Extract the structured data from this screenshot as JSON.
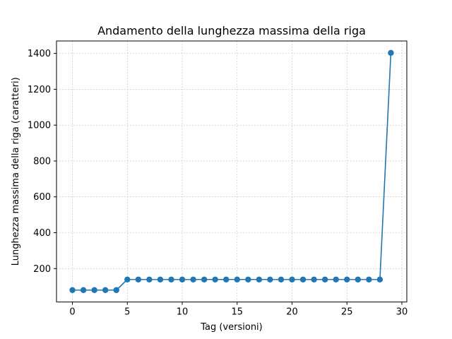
{
  "chart_data": {
    "type": "line",
    "title": "Andamento della lunghezza massima della riga",
    "xlabel": "Tag (versioni)",
    "ylabel": "Lunghezza massima della riga (caratteri)",
    "xlim": [
      -1.45,
      30.45
    ],
    "ylim": [
      13.6,
      1469.4
    ],
    "xticks": [
      0,
      5,
      10,
      15,
      20,
      25,
      30
    ],
    "yticks": [
      200,
      400,
      600,
      800,
      1000,
      1200,
      1400
    ],
    "grid": true,
    "marker": "circle",
    "color": "#1f77b4",
    "x": [
      0,
      1,
      2,
      3,
      4,
      5,
      6,
      7,
      8,
      9,
      10,
      11,
      12,
      13,
      14,
      15,
      16,
      17,
      18,
      19,
      20,
      21,
      22,
      23,
      24,
      25,
      26,
      27,
      28,
      29
    ],
    "y": [
      80,
      80,
      80,
      80,
      80,
      139,
      139,
      139,
      139,
      139,
      139,
      139,
      139,
      139,
      139,
      139,
      139,
      139,
      139,
      139,
      139,
      139,
      139,
      139,
      139,
      139,
      139,
      139,
      139,
      1403
    ]
  }
}
